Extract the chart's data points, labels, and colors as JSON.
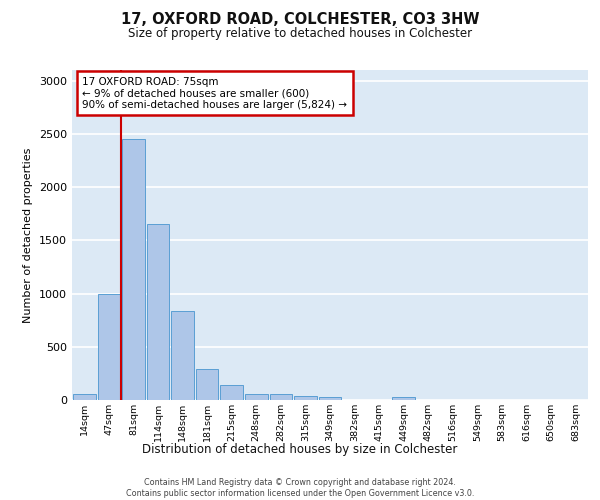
{
  "title_line1": "17, OXFORD ROAD, COLCHESTER, CO3 3HW",
  "title_line2": "Size of property relative to detached houses in Colchester",
  "xlabel": "Distribution of detached houses by size in Colchester",
  "ylabel": "Number of detached properties",
  "categories": [
    "14sqm",
    "47sqm",
    "81sqm",
    "114sqm",
    "148sqm",
    "181sqm",
    "215sqm",
    "248sqm",
    "282sqm",
    "315sqm",
    "349sqm",
    "382sqm",
    "415sqm",
    "449sqm",
    "482sqm",
    "516sqm",
    "549sqm",
    "583sqm",
    "616sqm",
    "650sqm",
    "683sqm"
  ],
  "values": [
    60,
    1000,
    2450,
    1650,
    840,
    295,
    140,
    55,
    55,
    40,
    25,
    0,
    0,
    30,
    0,
    0,
    0,
    0,
    0,
    0,
    0
  ],
  "ylim": [
    0,
    3100
  ],
  "yticks": [
    0,
    500,
    1000,
    1500,
    2000,
    2500,
    3000
  ],
  "bar_color": "#aec6e8",
  "bar_edge_color": "#5a9fd4",
  "bg_color": "#dce9f5",
  "grid_color": "#ffffff",
  "annotation_text": "17 OXFORD ROAD: 75sqm\n← 9% of detached houses are smaller (600)\n90% of semi-detached houses are larger (5,824) →",
  "annotation_box_color": "#ffffff",
  "annotation_box_edge": "#cc0000",
  "vline_x_index": 1.5,
  "vline_color": "#cc0000",
  "footer_line1": "Contains HM Land Registry data © Crown copyright and database right 2024.",
  "footer_line2": "Contains public sector information licensed under the Open Government Licence v3.0."
}
